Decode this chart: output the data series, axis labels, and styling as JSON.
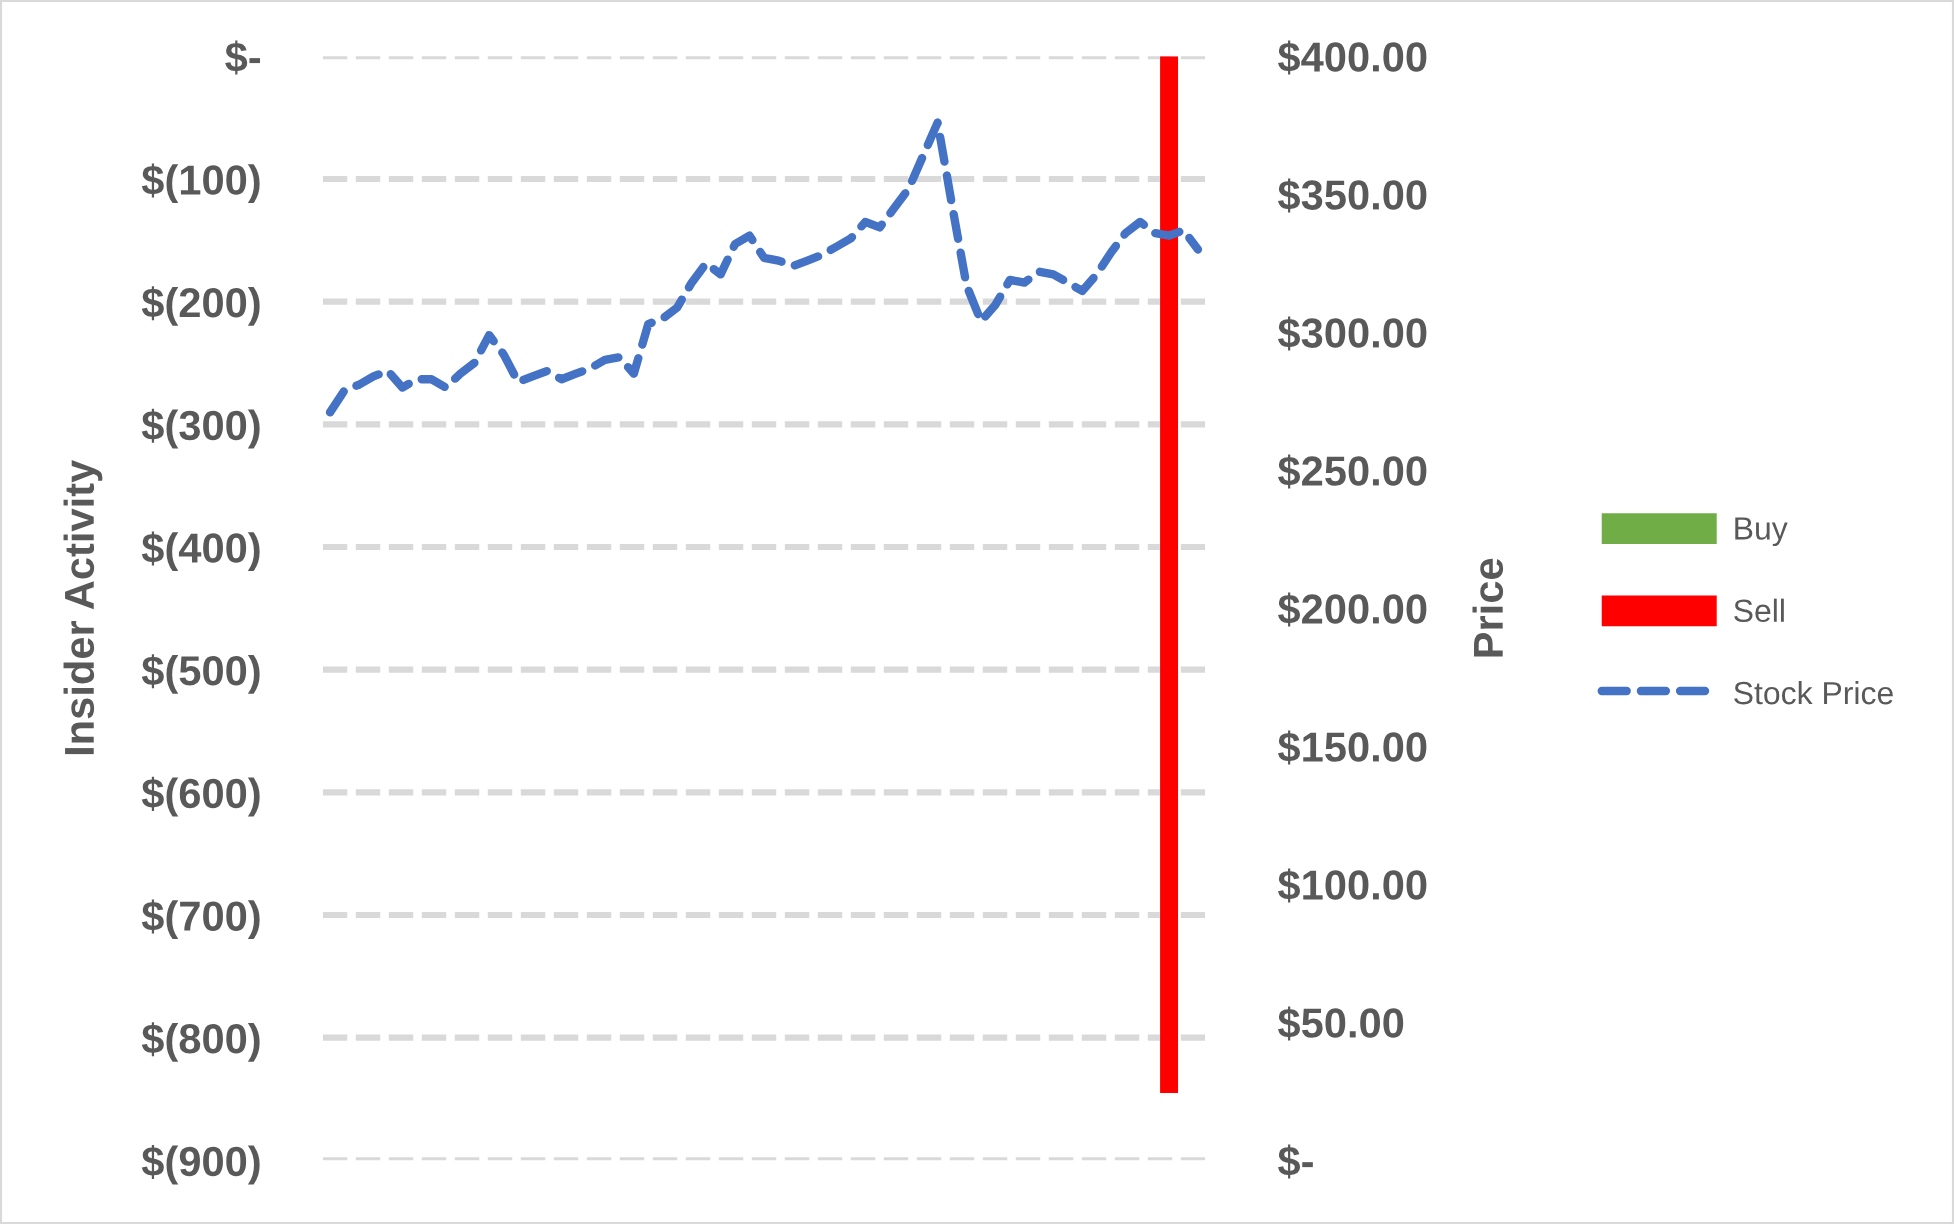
{
  "chart_data": {
    "type": "bar",
    "ylabel": "Insider Activity",
    "y2label": "Price",
    "categories": [
      null,
      null,
      null,
      null,
      null,
      null,
      null,
      null,
      null,
      null,
      null,
      null,
      null,
      null,
      null,
      null,
      null,
      null,
      null,
      null,
      null,
      null,
      null,
      null,
      null,
      null,
      null,
      null,
      null,
      null,
      null,
      null,
      null,
      null,
      null,
      null,
      null,
      null,
      null,
      null,
      null,
      null,
      null,
      null,
      null,
      null,
      null,
      null,
      null,
      null,
      null,
      null,
      null,
      null,
      null,
      null,
      null,
      null,
      null,
      null,
      null
    ],
    "series": [
      {
        "name": "Buy",
        "color": "#70ad47",
        "values": [
          null,
          null,
          null,
          null,
          null,
          null,
          null,
          null,
          null,
          null,
          null,
          null,
          null,
          null,
          null,
          null,
          null,
          null,
          null,
          null,
          null,
          null,
          null,
          null,
          null,
          null,
          null,
          null,
          null,
          null,
          null,
          null,
          null,
          null,
          null,
          null,
          null,
          null,
          null,
          null,
          null,
          null,
          null,
          null,
          null,
          null,
          null,
          null,
          null,
          null,
          null,
          null,
          null,
          null,
          null,
          null,
          null,
          null,
          null,
          null,
          null
        ]
      },
      {
        "name": "Sell",
        "color": "#ff0000",
        "values": [
          null,
          null,
          null,
          null,
          null,
          null,
          null,
          null,
          null,
          null,
          null,
          null,
          null,
          null,
          null,
          null,
          null,
          null,
          null,
          null,
          null,
          null,
          null,
          null,
          null,
          null,
          null,
          null,
          null,
          null,
          null,
          null,
          null,
          null,
          null,
          null,
          null,
          null,
          null,
          null,
          null,
          null,
          null,
          null,
          null,
          null,
          null,
          null,
          null,
          null,
          null,
          null,
          null,
          null,
          null,
          null,
          null,
          null,
          -845,
          null,
          null
        ]
      },
      {
        "name": "Stock Price",
        "type": "line",
        "axis": "y2",
        "color": "#4472c4",
        "line_style": "dashed",
        "values": [
          271,
          279,
          281,
          284,
          286,
          280,
          283,
          283,
          280,
          285,
          289,
          299,
          292,
          282,
          284,
          286,
          283,
          285,
          287,
          290,
          291,
          285,
          303,
          305,
          309,
          318,
          325,
          321,
          332,
          335,
          327,
          326,
          324,
          326,
          328,
          331,
          334,
          340,
          338,
          345,
          352,
          364,
          376,
          346,
          317,
          304,
          310,
          319,
          318,
          322,
          321,
          318,
          315,
          321,
          329,
          336,
          340,
          336,
          335,
          337,
          330
        ]
      }
    ],
    "ylim": [
      -900,
      0
    ],
    "yticks": [
      {
        "value": 0,
        "label": "$-"
      },
      {
        "value": -100,
        "label": "$(100)"
      },
      {
        "value": -200,
        "label": "$(200)"
      },
      {
        "value": -300,
        "label": "$(300)"
      },
      {
        "value": -400,
        "label": "$(400)"
      },
      {
        "value": -500,
        "label": "$(500)"
      },
      {
        "value": -600,
        "label": "$(600)"
      },
      {
        "value": -700,
        "label": "$(700)"
      },
      {
        "value": -800,
        "label": "$(800)"
      },
      {
        "value": -900,
        "label": "$(900)"
      }
    ],
    "y2lim": [
      0,
      400
    ],
    "y2ticks": [
      {
        "value": 0,
        "label": "$-"
      },
      {
        "value": 50,
        "label": "$50.00"
      },
      {
        "value": 100,
        "label": "$100.00"
      },
      {
        "value": 150,
        "label": "$150.00"
      },
      {
        "value": 200,
        "label": "$200.00"
      },
      {
        "value": 250,
        "label": "$250.00"
      },
      {
        "value": 300,
        "label": "$300.00"
      },
      {
        "value": 350,
        "label": "$350.00"
      },
      {
        "value": 400,
        "label": "$400.00"
      }
    ],
    "grid": "y",
    "legend": "right",
    "tick_labels": "y"
  }
}
